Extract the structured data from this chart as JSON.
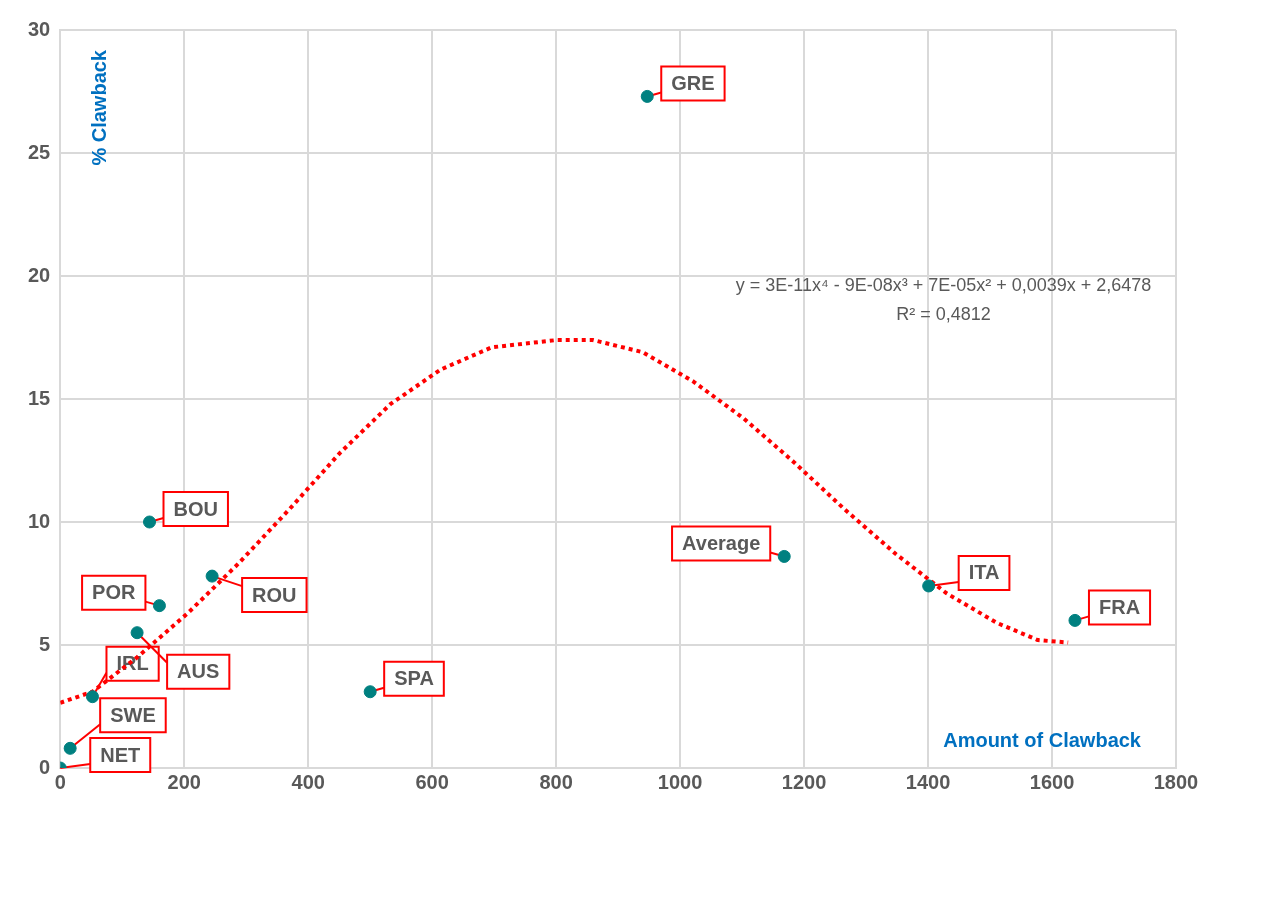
{
  "chart_data": {
    "type": "scatter",
    "xlabel": "Amount of Clawback",
    "ylabel": "% Clawback",
    "xlim": [
      0,
      1800
    ],
    "xticks": [
      0,
      200,
      400,
      600,
      800,
      1000,
      1200,
      1400,
      1600,
      1800
    ],
    "ylim": [
      0,
      30
    ],
    "yticks": [
      0,
      5,
      10,
      15,
      20,
      25,
      30
    ],
    "grid": true,
    "legend": false,
    "series": [
      {
        "type": "scatter",
        "color": "#008080",
        "marker": "circle",
        "x": [
          0,
          16,
          52,
          124,
          160,
          144,
          245,
          500,
          947,
          1168,
          1401,
          1637
        ],
        "values": [
          0,
          0.8,
          2.9,
          5.5,
          6.6,
          10.0,
          7.8,
          3.1,
          27.3,
          8.6,
          7.4,
          6.0
        ]
      },
      {
        "type": "line",
        "color": "#ff0000",
        "line_style": "dotted",
        "marker": "none",
        "x": [
          0,
          52,
          124,
          206,
          287,
          369,
          451,
          533,
          614,
          696,
          802,
          859,
          940,
          1022,
          1103,
          1185,
          1266,
          1348,
          1430,
          1511,
          1577,
          1626
        ],
        "values": [
          2.65,
          3.1,
          4.5,
          6.3,
          8.3,
          10.5,
          12.8,
          14.8,
          16.2,
          17.1,
          17.4,
          17.4,
          16.9,
          15.7,
          14.2,
          12.4,
          10.5,
          8.7,
          7.1,
          5.9,
          5.2,
          5.1
        ]
      }
    ],
    "annotations": [
      {
        "text": "NET",
        "x": 0,
        "y": 0
      },
      {
        "text": "SWE",
        "x": 16,
        "y": 0.8
      },
      {
        "text": "IRL",
        "x": 52,
        "y": 2.9
      },
      {
        "text": "AUS",
        "x": 124,
        "y": 5.5
      },
      {
        "text": "POR",
        "x": 160,
        "y": 6.6
      },
      {
        "text": "BOU",
        "x": 144,
        "y": 10.0
      },
      {
        "text": "ROU",
        "x": 245,
        "y": 7.8
      },
      {
        "text": "SPA",
        "x": 500,
        "y": 3.1
      },
      {
        "text": "GRE",
        "x": 947,
        "y": 27.3
      },
      {
        "text": "Average",
        "x": 1168,
        "y": 8.6
      },
      {
        "text": "ITA",
        "x": 1401,
        "y": 7.4
      },
      {
        "text": "FRA",
        "x": 1637,
        "y": 6.0
      },
      "y = 3E-11x⁴ - 9E-08x³ + 7E-05x² + 0,0039x + 2,6478",
      "R² = 0,4812"
    ]
  }
}
